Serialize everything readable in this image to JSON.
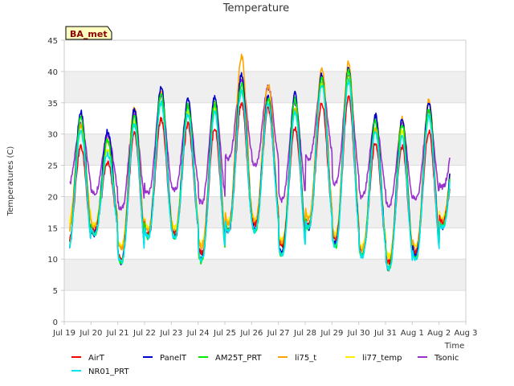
{
  "chart_data": {
    "type": "line",
    "title": "Temperature",
    "xlabel": "Time",
    "ylabel": "Temperatures (C)",
    "badge": "BA_met",
    "ylim": [
      0,
      45
    ],
    "xlim": [
      0,
      15
    ],
    "yticks": [
      0,
      5,
      10,
      15,
      20,
      25,
      30,
      35,
      40,
      45
    ],
    "xticks": [
      "Jul 19",
      "Jul 20",
      "Jul 21",
      "Jul 22",
      "Jul 23",
      "Jul 24",
      "Jul 25",
      "Jul 26",
      "Jul 27",
      "Jul 28",
      "Jul 29",
      "Jul 30",
      "Jul 31",
      "Aug 1",
      "Aug 2",
      "Aug 3"
    ],
    "grid": "horizontal bands",
    "legend_placement": "bottom",
    "x_start": 0.2,
    "x_end": 14.4,
    "series": [
      {
        "name": "AirT",
        "color": "#ff0000",
        "daily_max": [
          28,
          25.5,
          30,
          32.5,
          31.5,
          31,
          35,
          34,
          31,
          35,
          36,
          28.5,
          28,
          30.5,
          26.5
        ],
        "daily_min": [
          12.5,
          14.5,
          10,
          14,
          14,
          11,
          14.5,
          15.5,
          12,
          15.5,
          13,
          11,
          9.5,
          11,
          16
        ]
      },
      {
        "name": "PanelT",
        "color": "#0000cd",
        "daily_max": [
          33.5,
          30.5,
          34,
          37.5,
          35.5,
          36,
          39.5,
          36,
          36.5,
          39.5,
          40.5,
          33,
          32.5,
          35,
          31
        ],
        "daily_min": [
          11,
          14,
          9.5,
          13.5,
          13.5,
          10,
          14.5,
          15,
          11,
          15,
          12.5,
          10.5,
          8.5,
          10.5,
          15
        ]
      },
      {
        "name": "AM25T_PRT",
        "color": "#00ee00",
        "daily_max": [
          32.5,
          29,
          33,
          36.5,
          34.5,
          35,
          38,
          35.5,
          35.5,
          39,
          40,
          32,
          31.5,
          34,
          30
        ],
        "daily_min": [
          11,
          14,
          9.5,
          13.5,
          13.5,
          9.5,
          14.5,
          14.5,
          10.5,
          15,
          12,
          10.5,
          8.5,
          10,
          15
        ]
      },
      {
        "name": "li75_t",
        "color": "#ffa500",
        "daily_max": [
          31.5,
          29,
          34.5,
          36.5,
          34.5,
          35,
          42.5,
          38,
          34,
          40.5,
          41.5,
          31,
          32.5,
          35.5,
          30.5
        ],
        "daily_min": [
          14,
          15,
          11.5,
          14.5,
          14.5,
          12,
          15.5,
          16,
          12.5,
          16.5,
          13.5,
          11.5,
          9.5,
          11.5,
          16
        ]
      },
      {
        "name": "li77_temp",
        "color": "#ffee00",
        "daily_max": [
          30.5,
          27.5,
          32,
          35,
          33.5,
          34,
          37,
          35,
          34,
          38,
          39,
          31,
          30.5,
          33,
          29.5
        ],
        "daily_min": [
          15.5,
          15.5,
          12,
          15,
          15,
          12.5,
          16,
          16.5,
          13,
          17,
          14,
          12,
          10.5,
          12,
          16.5
        ]
      },
      {
        "name": "Tsonic",
        "color": "#9932cc",
        "daily_max": [
          31.5,
          30,
          33,
          36,
          34.5,
          35.5,
          38.5,
          37.5,
          35,
          38,
          39,
          32,
          31.5,
          33.5,
          30
        ],
        "daily_min": [
          21.5,
          20.5,
          18,
          20.5,
          21,
          19,
          26,
          25,
          19.5,
          26,
          22,
          20,
          18.5,
          19.5,
          21.5
        ]
      },
      {
        "name": "NR01_PRT",
        "color": "#00e5ee",
        "daily_max": [
          30.5,
          27,
          31.5,
          35,
          33,
          33.5,
          37,
          35,
          33.5,
          38,
          38.5,
          30.5,
          29.5,
          33,
          28.5
        ],
        "daily_min": [
          11,
          14,
          9.5,
          13.5,
          13.5,
          10,
          14.5,
          14.5,
          10.5,
          15,
          12,
          10.5,
          8.5,
          10,
          15
        ]
      }
    ]
  }
}
